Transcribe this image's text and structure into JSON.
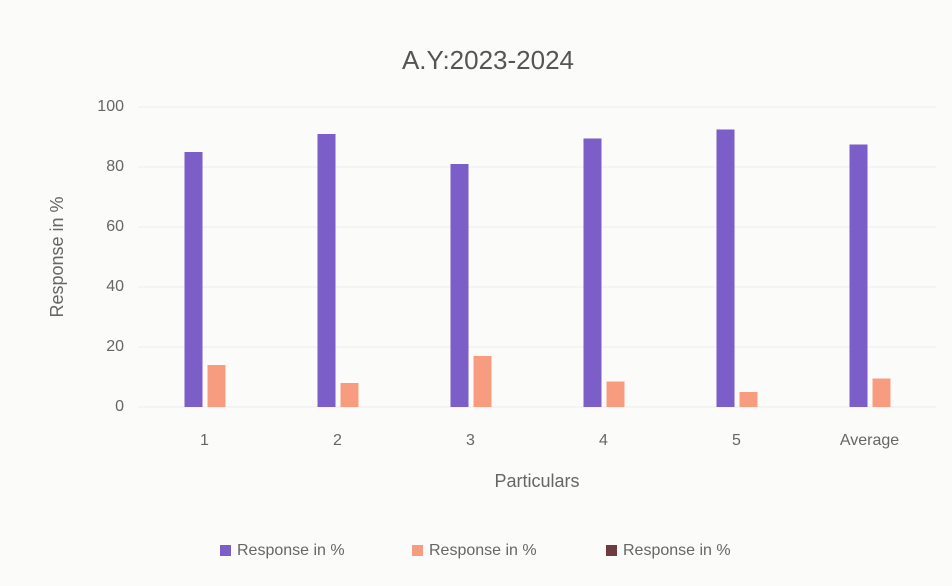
{
  "chart_data": {
    "type": "bar",
    "title": "A.Y:2023-2024",
    "x_label": "Particulars",
    "y_label": "Response in %",
    "categories": [
      "1",
      "2",
      "3",
      "4",
      "5",
      "Average"
    ],
    "series": [
      {
        "name": "Response in %",
        "color": "#7b5ec8",
        "values": [
          85,
          91,
          81,
          89.5,
          92.5,
          87.5
        ]
      },
      {
        "name": "Response in %",
        "color": "#f79c7e",
        "values": [
          14,
          8,
          17,
          8.5,
          5,
          9.5
        ]
      },
      {
        "name": "Response in %",
        "color": "#6e3b40",
        "values": [
          0,
          0,
          0,
          0,
          0,
          0
        ]
      }
    ],
    "ylim": [
      0,
      100
    ],
    "yticks": [
      0,
      20,
      40,
      60,
      80,
      100
    ],
    "grid": true,
    "legend": "bottom"
  }
}
